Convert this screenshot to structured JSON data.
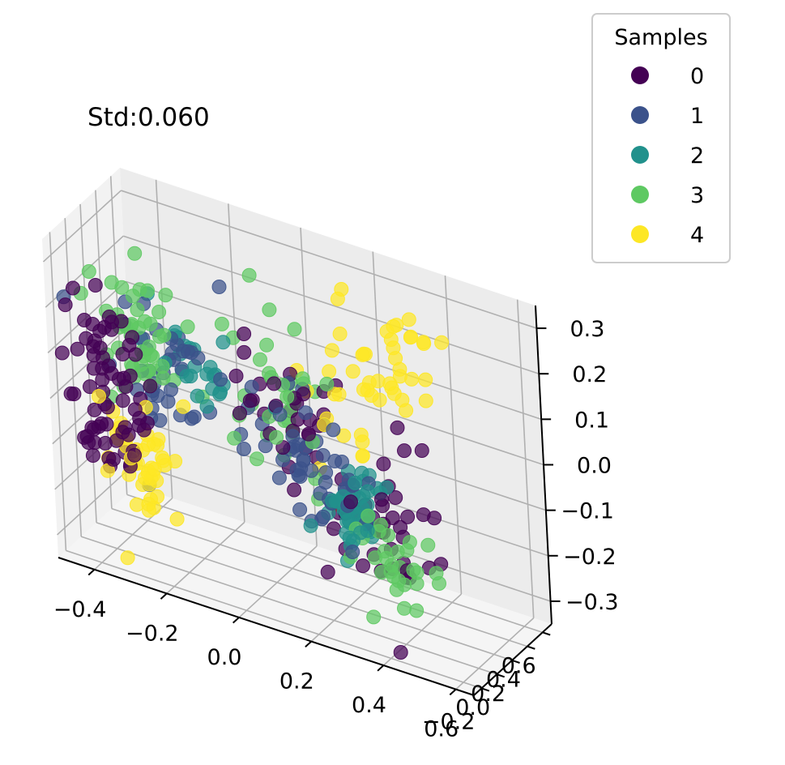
{
  "chart_data": {
    "type": "scatter",
    "projection": "3d",
    "title": "Std:0.060",
    "x_axis": {
      "range": [
        -0.5,
        0.65
      ],
      "ticks": [
        -0.4,
        -0.2,
        0.0,
        0.2,
        0.4,
        0.6
      ],
      "tick_labels": [
        "−0.4",
        "−0.2",
        "0.0",
        "0.2",
        "0.4",
        "0.6"
      ]
    },
    "y_axis": {
      "range": [
        -0.3,
        0.72
      ],
      "ticks": [
        -0.2,
        0.0,
        0.2,
        0.4,
        0.6
      ],
      "tick_labels": [
        "−0.2",
        "0.0",
        "0.2",
        "0.4",
        "0.6"
      ]
    },
    "z_axis": {
      "range": [
        -0.35,
        0.35
      ],
      "ticks": [
        -0.3,
        -0.2,
        -0.1,
        0.0,
        0.1,
        0.2,
        0.3
      ],
      "tick_labels": [
        "−0.3",
        "−0.2",
        "−0.1",
        "0.0",
        "0.1",
        "0.2",
        "0.3"
      ]
    },
    "legend": {
      "title": "Samples",
      "position": "top-right",
      "entries": [
        {
          "label": "0",
          "color": "#440154"
        },
        {
          "label": "1",
          "color": "#3b528b"
        },
        {
          "label": "2",
          "color": "#21918c"
        },
        {
          "label": "3",
          "color": "#5ec962"
        },
        {
          "label": "4",
          "color": "#fde725"
        }
      ]
    },
    "series": [
      {
        "name": "0",
        "color": "#440154",
        "clusters": [
          {
            "center": [
              -0.38,
              -0.12,
              0.02
            ],
            "spread": [
              0.06,
              0.05,
              0.1
            ],
            "count": 70
          },
          {
            "center": [
              0.05,
              0.18,
              0.05
            ],
            "spread": [
              0.08,
              0.08,
              0.08
            ],
            "count": 30
          },
          {
            "center": [
              0.35,
              0.1,
              -0.12
            ],
            "spread": [
              0.08,
              0.05,
              0.08
            ],
            "count": 40
          }
        ]
      },
      {
        "name": "1",
        "color": "#3b528b",
        "clusters": [
          {
            "center": [
              -0.25,
              0.12,
              0.05
            ],
            "spread": [
              0.08,
              0.06,
              0.08
            ],
            "count": 40
          },
          {
            "center": [
              0.1,
              0.15,
              -0.03
            ],
            "spread": [
              0.07,
              0.05,
              0.06
            ],
            "count": 30
          },
          {
            "center": [
              0.2,
              0.05,
              -0.08
            ],
            "spread": [
              0.05,
              0.05,
              0.05
            ],
            "count": 20
          }
        ]
      },
      {
        "name": "2",
        "color": "#21918c",
        "clusters": [
          {
            "center": [
              -0.2,
              0.18,
              0.08
            ],
            "spread": [
              0.07,
              0.06,
              0.06
            ],
            "count": 25
          },
          {
            "center": [
              0.25,
              0.05,
              -0.1
            ],
            "spread": [
              0.04,
              0.04,
              0.05
            ],
            "count": 45
          }
        ]
      },
      {
        "name": "3",
        "color": "#5ec962",
        "clusters": [
          {
            "center": [
              -0.32,
              0.05,
              0.14
            ],
            "spread": [
              0.06,
              0.06,
              0.07
            ],
            "count": 45
          },
          {
            "center": [
              0.0,
              0.2,
              0.06
            ],
            "spread": [
              0.08,
              0.06,
              0.08
            ],
            "count": 35
          },
          {
            "center": [
              0.38,
              0.0,
              -0.2
            ],
            "spread": [
              0.06,
              0.05,
              0.06
            ],
            "count": 30
          }
        ]
      },
      {
        "name": "4",
        "color": "#fde725",
        "clusters": [
          {
            "center": [
              -0.3,
              -0.06,
              -0.12
            ],
            "spread": [
              0.07,
              0.05,
              0.08
            ],
            "count": 45
          },
          {
            "center": [
              0.2,
              0.3,
              0.1
            ],
            "spread": [
              0.05,
              0.05,
              0.1
            ],
            "count": 25
          },
          {
            "center": [
              0.3,
              0.55,
              0.15
            ],
            "spread": [
              0.05,
              0.06,
              0.07
            ],
            "count": 25
          }
        ]
      }
    ]
  }
}
